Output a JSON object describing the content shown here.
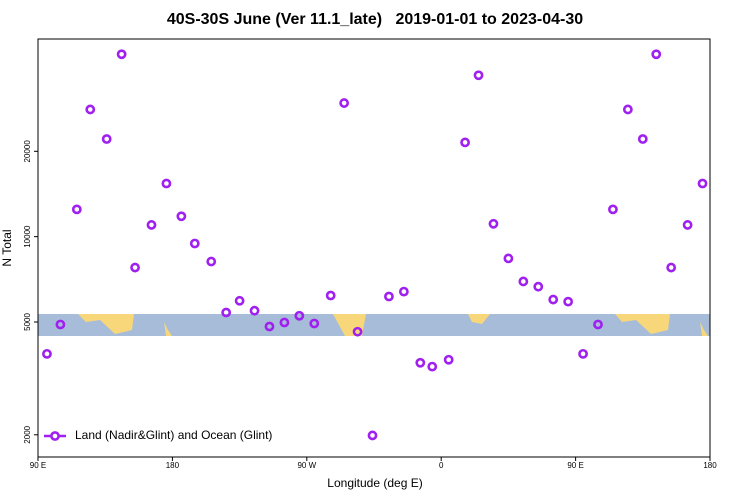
{
  "chart_data": {
    "type": "scatter",
    "title": "40S-30S June (Ver 11.1_late)   2019-01-01 to 2023-04-30",
    "x_label": "Longitude (deg E)",
    "y_label": "N Total",
    "log_y": true,
    "xlim": [
      90,
      540
    ],
    "xticks": [
      {
        "value": 90,
        "label": "90 E"
      },
      {
        "value": 180,
        "label": "180"
      },
      {
        "value": 270,
        "label": "90 W"
      },
      {
        "value": 360,
        "label": "0"
      },
      {
        "value": 450,
        "label": "90 E"
      },
      {
        "value": 540,
        "label": "180"
      }
    ],
    "ylim": [
      1670,
      49800
    ],
    "yticks": [
      2000,
      5000,
      10000,
      20000
    ],
    "legend_position": "lower left",
    "series": [
      {
        "name": "Land (Nadir&Glint) and Ocean (Glint)",
        "color": "#a020f0",
        "x": [
          96,
          105,
          116,
          125,
          136,
          146,
          155,
          166,
          176,
          186,
          195,
          206,
          216,
          225,
          235,
          245,
          255,
          265,
          275,
          286,
          295,
          304,
          314,
          325,
          335,
          346,
          354,
          365,
          376,
          385,
          395,
          405,
          415,
          425,
          435,
          445,
          455,
          465,
          475,
          485,
          495,
          504,
          514,
          525,
          535
        ],
        "values": [
          3860,
          4900,
          12480,
          28100,
          22100,
          44000,
          7780,
          11000,
          15400,
          11800,
          9460,
          8170,
          5400,
          5940,
          5480,
          4820,
          4980,
          5260,
          4940,
          6200,
          29600,
          4620,
          1990,
          6150,
          6400,
          3590,
          3480,
          3680,
          21500,
          37100,
          11100,
          8380,
          6950,
          6660,
          6000,
          5900,
          3860,
          4900,
          12480,
          28100,
          22100,
          44000,
          7780,
          11000,
          15400
        ]
      }
    ]
  }
}
